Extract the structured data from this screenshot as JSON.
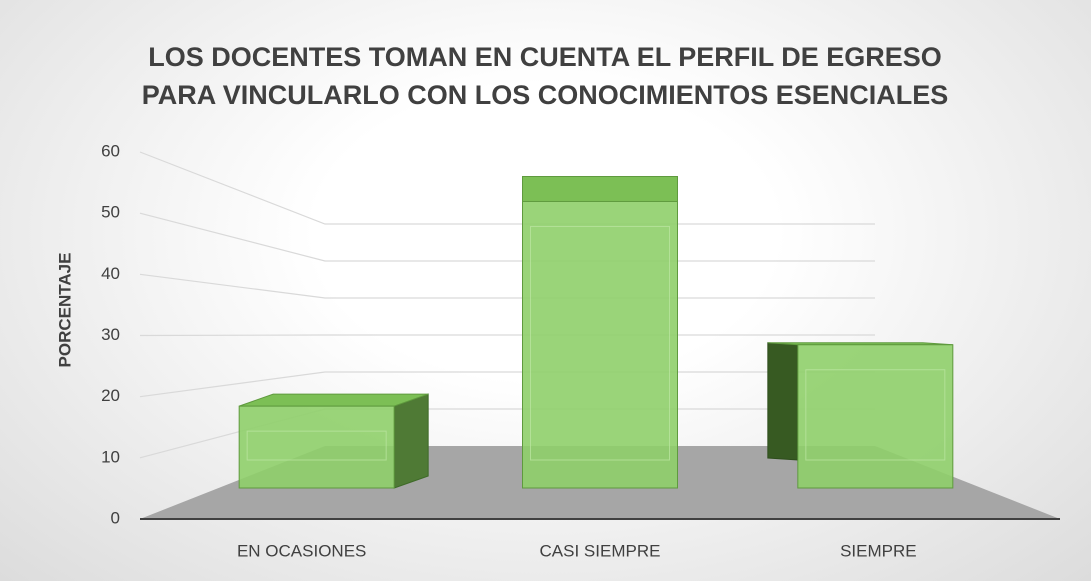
{
  "chart_data": {
    "type": "bar3d",
    "title": "LOS DOCENTES TOMAN EN CUENTA EL PERFIL DE EGRESO PARA VINCULARLO CON LOS CONOCIMIENTOS ESENCIALES",
    "y_label": "PORCENTAJE",
    "categories": [
      "EN OCASIONES",
      "CASI SIEMPRE",
      "SIEMPRE"
    ],
    "values": [
      16,
      56,
      28
    ],
    "color": "#8fcf6a",
    "ylim": [
      0,
      60
    ],
    "yticks": [
      0,
      10,
      20,
      30,
      40,
      50,
      60
    ],
    "grid": true
  }
}
